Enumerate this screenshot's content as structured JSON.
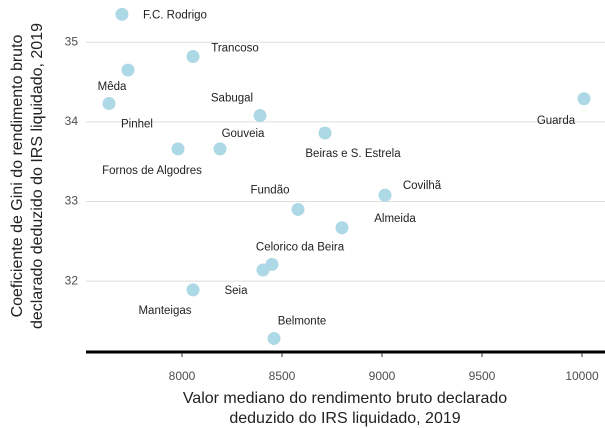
{
  "chart_data": {
    "type": "scatter",
    "xlabel": [
      "Valor mediano do rendimento bruto declarado",
      "deduzido do IRS liquidado, 2019"
    ],
    "ylabel": [
      "Coeficiente de Gini do rendimento bruto",
      "declarado deduzido do IRS liquidado, 2019"
    ],
    "labels": [
      "F.C. Rodrigo",
      "Trancoso",
      "Mêda",
      "Pinhel",
      "Sabugal",
      "Beiras e S. Estrela",
      "Guarda",
      "Fornos de Algodres",
      "Gouveia",
      "Covilhã",
      "Fundão",
      "Almeida",
      "Celorico da Beira",
      "Seia",
      "Manteigas",
      "Belmonte"
    ],
    "x": [
      7700,
      8055,
      7730,
      7635,
      8390,
      8715,
      10010,
      7980,
      8190,
      9015,
      8580,
      8800,
      8450,
      8405,
      8055,
      8460
    ],
    "values": [
      35.35,
      34.82,
      34.65,
      34.23,
      34.08,
      33.86,
      34.29,
      33.66,
      33.66,
      33.08,
      32.9,
      32.67,
      32.21,
      32.14,
      31.89,
      31.28
    ],
    "color": "#add8e6",
    "xlim": [
      7520,
      10115
    ],
    "xticks": [
      8000,
      8500,
      9000,
      9500,
      10000
    ],
    "ylim": [
      31.11,
      35.53
    ],
    "yticks": [
      32,
      33,
      34,
      35
    ],
    "grid": true
  }
}
